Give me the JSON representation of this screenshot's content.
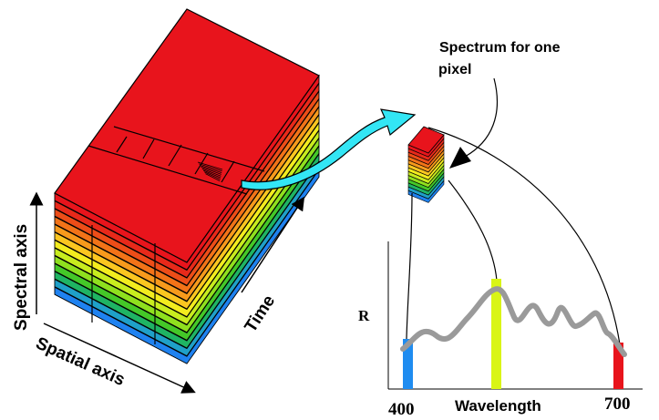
{
  "annotations": {
    "spectrum_label_line1": "Spectrum for one",
    "spectrum_label_line2": "pixel",
    "spectral_axis": "Spectral axis",
    "spatial_axis": "Spatial axis",
    "time_axis": "Time"
  },
  "chart": {
    "y_label": "R",
    "x_label": "Wavelength",
    "tick_400": "400",
    "tick_700": "700"
  },
  "colors": {
    "cube_top": "#e8141c",
    "arrow": "#33e6f5",
    "curve": "#9a9a9a",
    "bar_blue": "#1f8cf0",
    "bar_yellow": "#d9f516",
    "bar_red": "#e8141c",
    "layers": [
      "#e8141c",
      "#e8291a",
      "#ed4d18",
      "#f27318",
      "#f79a1c",
      "#fbc620",
      "#f3ec1e",
      "#c8ec1e",
      "#8fe01e",
      "#44c828",
      "#1fb463",
      "#1fa0c8",
      "#1f82f0"
    ]
  },
  "icons": {
    "pointer_arrow": "arrow-pointer-icon",
    "big_arrow": "curved-arrow-icon"
  }
}
